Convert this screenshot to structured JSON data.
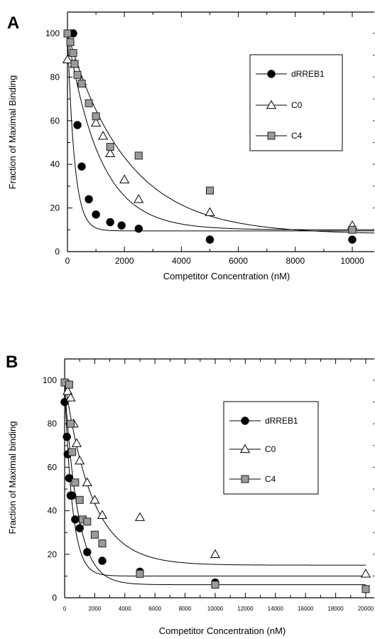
{
  "chart_data": [
    {
      "panel_label": "A",
      "type": "scatter",
      "xlabel": "Competitor Concentration (nM)",
      "ylabel": "Fraction of Maximal Binding",
      "xlim": [
        0,
        11000
      ],
      "ylim": [
        0,
        110
      ],
      "x_ticks": [
        0,
        2000,
        4000,
        6000,
        8000,
        10000
      ],
      "y_ticks": [
        0,
        20,
        40,
        60,
        80,
        100
      ],
      "grid": false,
      "legend_position": "upper-right",
      "series": [
        {
          "name": "dRREB1",
          "marker": "filled-circle",
          "x": [
            100,
            200,
            350,
            500,
            750,
            1000,
            1500,
            1900,
            2500,
            5000,
            10000
          ],
          "y": [
            100,
            100,
            58,
            39,
            24,
            17,
            13.5,
            12,
            10.5,
            5.5,
            5.5
          ],
          "fit": {
            "y0": 9.5,
            "a": 92,
            "k": 0.0042
          }
        },
        {
          "name": "C0",
          "marker": "open-triangle",
          "x": [
            0,
            250,
            500,
            1000,
            1250,
            1500,
            2000,
            2500,
            5000,
            10000
          ],
          "y": [
            88,
            86,
            78,
            59,
            53,
            45,
            33,
            24,
            18,
            12
          ],
          "fit": {
            "y0": 10,
            "a": 90,
            "k": 0.00088
          }
        },
        {
          "name": "C4",
          "marker": "gray-square",
          "x": [
            0,
            100,
            200,
            250,
            350,
            500,
            750,
            1000,
            1500,
            2500,
            5000,
            10000
          ],
          "y": [
            100,
            96,
            91,
            86,
            81,
            77,
            68,
            62,
            48,
            44,
            28,
            10
          ],
          "fit": {
            "y0": 8,
            "a": 92,
            "k": 0.00048
          }
        }
      ]
    },
    {
      "panel_label": "B",
      "type": "scatter",
      "xlabel": "Competitor Concentration (nM)",
      "ylabel": "Fraction of Maximal binding",
      "xlim": [
        0,
        20000
      ],
      "ylim": [
        0,
        110
      ],
      "x_ticks": [
        0,
        2000,
        4000,
        6000,
        8000,
        10000,
        12000,
        14000,
        16000,
        18000,
        20000
      ],
      "y_ticks": [
        0,
        20,
        40,
        60,
        80,
        100
      ],
      "grid": false,
      "legend_position": "upper-right",
      "series": [
        {
          "name": "dRREB1",
          "marker": "filled-circle",
          "x": [
            0,
            150,
            200,
            300,
            400,
            500,
            700,
            1000,
            1500,
            2500,
            5000,
            10000
          ],
          "y": [
            90,
            74,
            66,
            55,
            47,
            47,
            36,
            32,
            21,
            17,
            12,
            7
          ],
          "fit": {
            "y0": 10,
            "a": 88,
            "k": 0.00195
          }
        },
        {
          "name": "C0",
          "marker": "open-triangle",
          "x": [
            200,
            400,
            600,
            800,
            1000,
            1500,
            2000,
            2500,
            5000,
            10000,
            20000
          ],
          "y": [
            95,
            92,
            80,
            71,
            63,
            53,
            45,
            38,
            37,
            20,
            11
          ],
          "fit": {
            "y0": 15,
            "a": 85,
            "k": 0.00055
          }
        },
        {
          "name": "C4",
          "marker": "gray-square",
          "x": [
            0,
            300,
            400,
            500,
            700,
            1000,
            1200,
            1500,
            2000,
            2500,
            5000,
            10000,
            20000
          ],
          "y": [
            99,
            98,
            80,
            67,
            53,
            45,
            36,
            35,
            29,
            25,
            11,
            6,
            4
          ],
          "fit": {
            "y0": 6,
            "a": 92,
            "k": 0.00115
          }
        }
      ]
    }
  ]
}
